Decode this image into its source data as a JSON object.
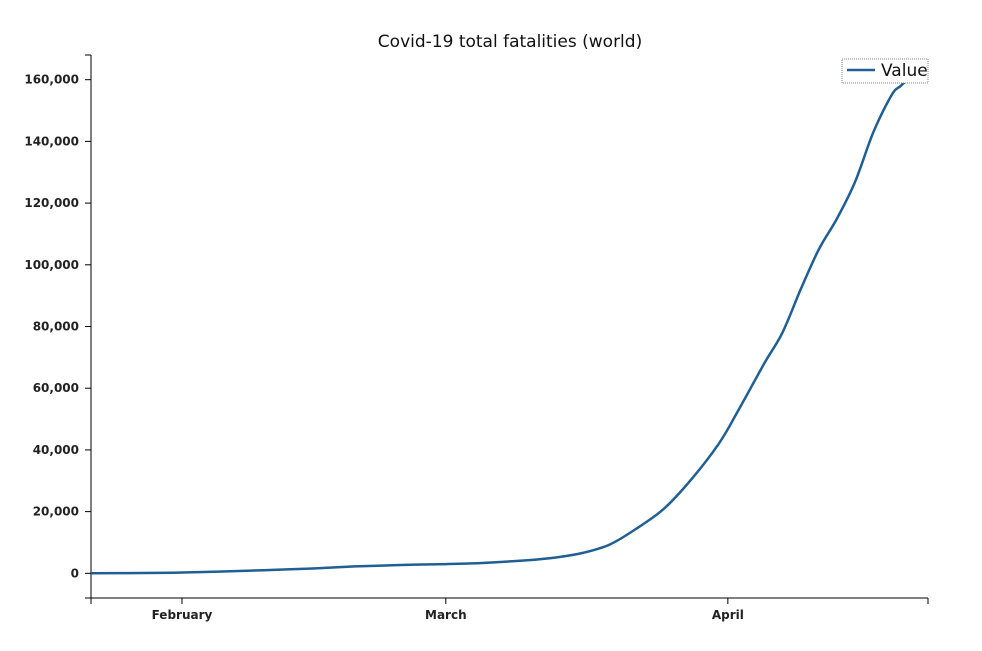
{
  "chart_data": {
    "type": "line",
    "title": "Covid-19 total fatalities (world)",
    "xlabel": "",
    "ylabel": "",
    "x_axis": {
      "type": "date",
      "start": "2020-01-22",
      "end": "2020-04-23",
      "ticks": [
        {
          "date": "2020-02-01",
          "label": "February"
        },
        {
          "date": "2020-03-01",
          "label": "March"
        },
        {
          "date": "2020-04-01",
          "label": "April"
        }
      ]
    },
    "ylim": [
      -8000,
      168000
    ],
    "y_ticks": [
      {
        "value": 0,
        "label": "0"
      },
      {
        "value": 20000,
        "label": "20,000"
      },
      {
        "value": 40000,
        "label": "40,000"
      },
      {
        "value": 60000,
        "label": "60,000"
      },
      {
        "value": 80000,
        "label": "80,000"
      },
      {
        "value": 100000,
        "label": "100,000"
      },
      {
        "value": 120000,
        "label": "120,000"
      },
      {
        "value": 140000,
        "label": "140,000"
      },
      {
        "value": 160000,
        "label": "160,000"
      }
    ],
    "grid": false,
    "legend": {
      "position": "top-right",
      "entries": [
        "Value"
      ]
    },
    "series": [
      {
        "name": "Value",
        "color": "#1f5f94",
        "points": [
          {
            "x": "2020-01-22",
            "y": 17
          },
          {
            "x": "2020-01-26",
            "y": 56
          },
          {
            "x": "2020-01-31",
            "y": 213
          },
          {
            "x": "2020-02-05",
            "y": 565
          },
          {
            "x": "2020-02-10",
            "y": 1013
          },
          {
            "x": "2020-02-15",
            "y": 1527
          },
          {
            "x": "2020-02-20",
            "y": 2250
          },
          {
            "x": "2020-02-25",
            "y": 2700
          },
          {
            "x": "2020-03-01",
            "y": 3000
          },
          {
            "x": "2020-03-05",
            "y": 3350
          },
          {
            "x": "2020-03-10",
            "y": 4250
          },
          {
            "x": "2020-03-13",
            "y": 5100
          },
          {
            "x": "2020-03-16",
            "y": 6600
          },
          {
            "x": "2020-03-19",
            "y": 9300
          },
          {
            "x": "2020-03-22",
            "y": 14600
          },
          {
            "x": "2020-03-25",
            "y": 21000
          },
          {
            "x": "2020-03-28",
            "y": 30500
          },
          {
            "x": "2020-03-31",
            "y": 42000
          },
          {
            "x": "2020-04-02",
            "y": 52000
          },
          {
            "x": "2020-04-05",
            "y": 68000
          },
          {
            "x": "2020-04-07",
            "y": 78000
          },
          {
            "x": "2020-04-09",
            "y": 92000
          },
          {
            "x": "2020-04-11",
            "y": 105000
          },
          {
            "x": "2020-04-13",
            "y": 115000
          },
          {
            "x": "2020-04-15",
            "y": 127000
          },
          {
            "x": "2020-04-17",
            "y": 143000
          },
          {
            "x": "2020-04-19",
            "y": 155000
          },
          {
            "x": "2020-04-20",
            "y": 158000
          },
          {
            "x": "2020-04-21",
            "y": 160500
          }
        ]
      }
    ]
  }
}
